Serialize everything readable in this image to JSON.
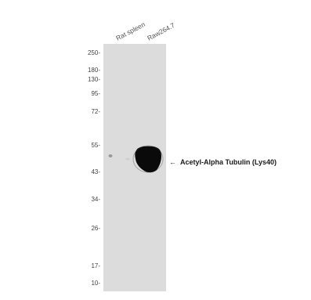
{
  "lanes": [
    "Rat spleen",
    "Raw264.7"
  ],
  "molecular_weight_markers": [
    "250-",
    "180-",
    "130-",
    "95-",
    "72-",
    "55-",
    "43-",
    "34-",
    "26-",
    "17-",
    "10-"
  ],
  "band_annotation": {
    "arrow": "←",
    "label": "Acetyl-Alpha Tubulin (Lys40)"
  },
  "colors": {
    "membrane": "#dcdcdc",
    "band": "#0a0a0a",
    "text": "#444444"
  }
}
